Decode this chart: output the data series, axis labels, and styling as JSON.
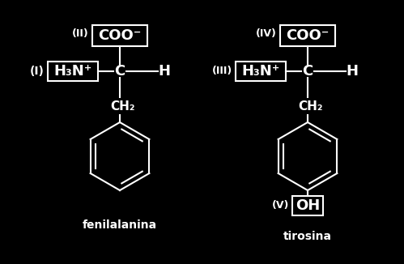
{
  "bg_color": "#000000",
  "fg_color": "#ffffff",
  "fig_width": 4.99,
  "fig_height": 3.26,
  "dpi": 100,
  "phenylalanine_label": "fenilalanina",
  "tyrosine_label": "tirosina",
  "label_I": "(I)",
  "label_II": "(II)",
  "label_III": "(III)",
  "label_IV": "(IV)",
  "label_V": "(V)",
  "box_H3N": "H₃N⁺",
  "box_COO": "COO⁻",
  "box_OH": "OH",
  "C_text": "C",
  "H_text": "H",
  "CH2_text": "CH₂"
}
